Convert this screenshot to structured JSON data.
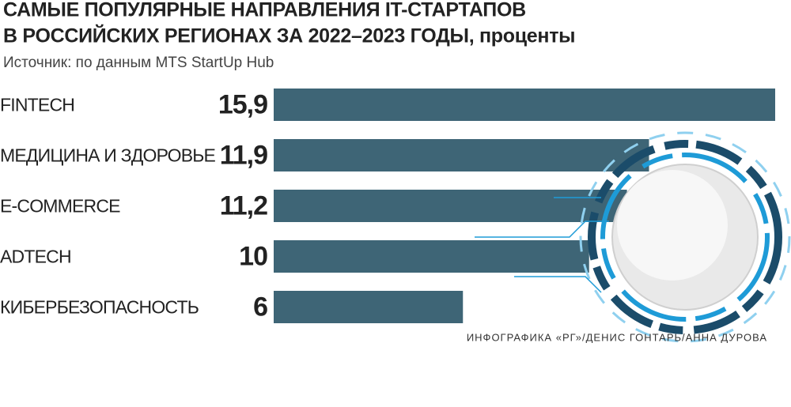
{
  "chart_data": {
    "type": "bar",
    "orientation": "horizontal",
    "title": [
      "САМЫЕ ПОПУЛЯРНЫЕ НАПРАВЛЕНИЯ IT-СТАРТАПОВ",
      "В РОССИЙСКИХ РЕГИОНАХ ЗА 2022–2023 ГОДЫ, проценты"
    ],
    "subtitle": "Источник: по данным MTS StartUp Hub",
    "credit": "ИНФОГРАФИКА «РГ»/ДЕНИС ГОНТАРЬ/АННА ДУРОВА",
    "categories": [
      "FINTECH",
      "МЕДИЦИНА И ЗДОРОВЬЕ",
      "E-COMMERCE",
      "ADTECH",
      "КИБЕРБЕЗОПАСНОСТЬ"
    ],
    "values": [
      15.9,
      11.9,
      11.2,
      10,
      6
    ],
    "value_labels": [
      "15,9",
      "11,9",
      "11,2",
      "10",
      "6"
    ],
    "color": "#3e6576"
  }
}
